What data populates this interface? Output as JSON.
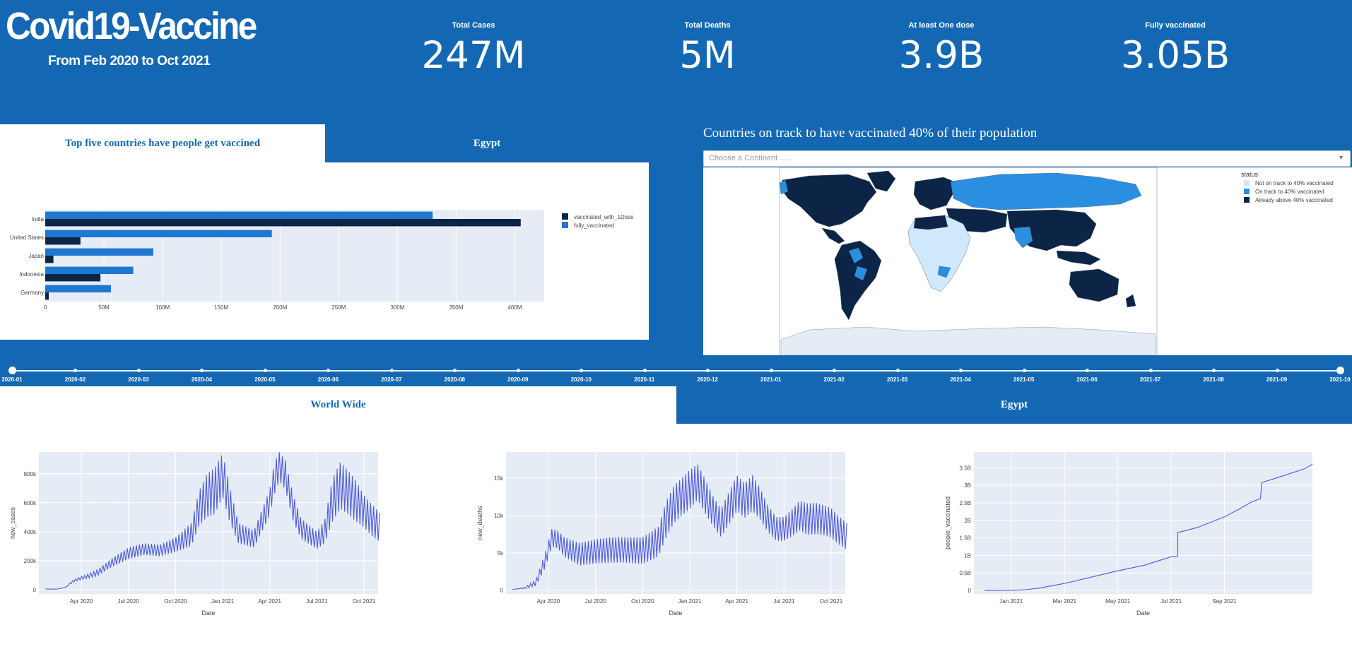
{
  "header": {
    "title": "Covid19-Vaccine",
    "subtitle": "From Feb 2020 to Oct 2021"
  },
  "kpis": [
    {
      "label": "Total Cases",
      "value": "247M"
    },
    {
      "label": "Total Deaths",
      "value": "5M"
    },
    {
      "label": "At least One dose",
      "value": "3.9B"
    },
    {
      "label": "Fully vaccinated",
      "value": "3.05B"
    }
  ],
  "top_tabs": [
    {
      "label": "Top five countries have people get vaccined",
      "active": true
    },
    {
      "label": "Egypt",
      "active": false
    }
  ],
  "map": {
    "title": "Countries on track to have vaccinated 40% of their population",
    "dropdown_placeholder": "Choose a Continent ......",
    "legend_title": "status",
    "legend": [
      {
        "label": "Not on track to 40% vaccinated",
        "color": "#cfe8fb"
      },
      {
        "label": "On track to 40% vaccinated",
        "color": "#2a8fe0"
      },
      {
        "label": "Already above 40% vaccinated",
        "color": "#0c2446"
      }
    ],
    "ocean_color": "#ffffff",
    "land_outline_color": "#6b7b8c"
  },
  "timeline": {
    "labels": [
      "2020-01",
      "2020-02",
      "2020-03",
      "2020-04",
      "2020-05",
      "2020-06",
      "2020-07",
      "2020-08",
      "2020-09",
      "2020-10",
      "2020-11",
      "2020-12",
      "2021-01",
      "2021-02",
      "2021-03",
      "2021-04",
      "2021-05",
      "2021-06",
      "2021-07",
      "2021-08",
      "2021-09",
      "2021-10"
    ],
    "selected": "2021-10"
  },
  "bottom_tabs": [
    {
      "label": "World Wide",
      "active": true
    },
    {
      "label": "Egypt",
      "active": false
    }
  ],
  "chart_data": [
    {
      "type": "bar",
      "orientation": "horizontal",
      "categories": [
        "India",
        "United States",
        "Japan",
        "Indonesia",
        "Germany"
      ],
      "series": [
        {
          "name": "vaccinated_with_1Dose",
          "color": "#0c2446",
          "values": [
            405000000,
            30000000,
            7000000,
            47000000,
            3000000
          ]
        },
        {
          "name": "fully_vaccinated",
          "color": "#1f77d0",
          "values": [
            330000000,
            193000000,
            92000000,
            75000000,
            56000000
          ]
        }
      ],
      "xticks": [
        "0",
        "50M",
        "100M",
        "150M",
        "200M",
        "250M",
        "300M",
        "350M",
        "400M"
      ],
      "xlim": [
        0,
        425000000
      ],
      "legend_position": "right"
    },
    {
      "type": "line",
      "color": "#4e5ad9",
      "ylabel": "new_cases",
      "xlabel": "Date",
      "xticks": [
        "Apr 2020",
        "Jul 2020",
        "Oct 2020",
        "Jan 2021",
        "Apr 2021",
        "Jul 2021",
        "Oct 2021"
      ],
      "yticks": [
        "0",
        "200k",
        "400k",
        "600k",
        "800k"
      ],
      "ylim": [
        -30000,
        950000
      ],
      "x_months": [
        0.7,
        1.0,
        1.5,
        2.0,
        2.5,
        3.0,
        3.5,
        4.0,
        5.0,
        6.0,
        7.0,
        8.0,
        9.0,
        10.0,
        10.5,
        11.0,
        11.5,
        12.0,
        12.5,
        13.0,
        14.0,
        15.0,
        15.3,
        15.6,
        16.0,
        16.5,
        17.0,
        18.0,
        18.5,
        19.0,
        19.5,
        20.0,
        20.5,
        21.0,
        21.5,
        22.0
      ],
      "values": [
        5000,
        3000,
        4000,
        15000,
        60000,
        80000,
        95000,
        115000,
        190000,
        250000,
        280000,
        270000,
        310000,
        380000,
        560000,
        650000,
        680000,
        790000,
        570000,
        390000,
        350000,
        600000,
        770000,
        850000,
        790000,
        560000,
        420000,
        340000,
        400000,
        620000,
        720000,
        670000,
        610000,
        540000,
        480000,
        430000
      ],
      "amplitude": [
        0,
        0,
        0,
        2000,
        8000,
        10000,
        15000,
        20000,
        30000,
        40000,
        40000,
        40000,
        50000,
        80000,
        120000,
        150000,
        160000,
        150000,
        120000,
        70000,
        60000,
        90000,
        110000,
        100000,
        100000,
        90000,
        70000,
        60000,
        80000,
        150000,
        160000,
        150000,
        140000,
        110000,
        110000,
        100000
      ]
    },
    {
      "type": "line",
      "color": "#4e5ad9",
      "ylabel": "new_deaths",
      "xlabel": "Date",
      "xticks": [
        "Apr 2020",
        "Jul 2020",
        "Oct 2020",
        "Jan 2021",
        "Apr 2021",
        "Jul 2021",
        "Oct 2021"
      ],
      "yticks": [
        "0",
        "5k",
        "10k",
        "15k"
      ],
      "ylim": [
        -500,
        18500
      ],
      "x_months": [
        0.7,
        1.5,
        2.2,
        2.8,
        3.2,
        3.6,
        4.0,
        5.0,
        6.0,
        7.0,
        8.0,
        9.0,
        10.0,
        10.5,
        11.0,
        11.5,
        12.0,
        12.5,
        13.0,
        13.5,
        14.0,
        14.5,
        15.0,
        15.5,
        16.0,
        16.5,
        17.0,
        17.5,
        18.0,
        18.5,
        19.0,
        19.5,
        20.0,
        20.5,
        21.0,
        21.5,
        22.0
      ],
      "values": [
        100,
        300,
        1000,
        4000,
        7000,
        6800,
        5800,
        4800,
        5200,
        5400,
        5400,
        5300,
        6500,
        9500,
        11500,
        12500,
        13500,
        14500,
        12500,
        10500,
        9000,
        11000,
        13000,
        12000,
        13000,
        11500,
        9500,
        8200,
        8200,
        9000,
        10000,
        9500,
        9600,
        9400,
        9000,
        8000,
        7200
      ],
      "amplitude": [
        0,
        100,
        400,
        1000,
        1200,
        1200,
        1300,
        1500,
        1600,
        1700,
        1700,
        1800,
        2000,
        2400,
        2500,
        2500,
        2600,
        2400,
        2300,
        2000,
        1900,
        2200,
        2400,
        2300,
        2400,
        2100,
        1800,
        1600,
        1600,
        1800,
        2000,
        2100,
        2100,
        2000,
        2000,
        1900,
        1800
      ]
    },
    {
      "type": "line",
      "color": "#4e5ad9",
      "ylabel": "people_vaccinated",
      "xlabel": "Date",
      "xticks": [
        "Jan 2021",
        "Mar 2021",
        "May 2021",
        "Jul 2021",
        "Sep 2021"
      ],
      "yticks": [
        "0",
        "0.5B",
        "1B",
        "1.5B",
        "2B",
        "2.5B",
        "3B",
        "3.5B"
      ],
      "ylim": [
        -100000000,
        3950000000
      ],
      "x_months": [
        11.0,
        12.0,
        12.5,
        13.0,
        14.0,
        15.0,
        16.0,
        17.0,
        17.5,
        18.0,
        18.25,
        18.25,
        19.0,
        20.0,
        20.5,
        21.0,
        21.35,
        21.4,
        22.0,
        23.0,
        23.3
      ],
      "values": [
        0,
        5000000,
        20000000,
        60000000,
        200000000,
        380000000,
        560000000,
        720000000,
        840000000,
        960000000,
        980000000,
        1650000000,
        1800000000,
        2100000000,
        2300000000,
        2520000000,
        2620000000,
        3080000000,
        3220000000,
        3470000000,
        3600000000
      ],
      "amplitude": []
    }
  ]
}
